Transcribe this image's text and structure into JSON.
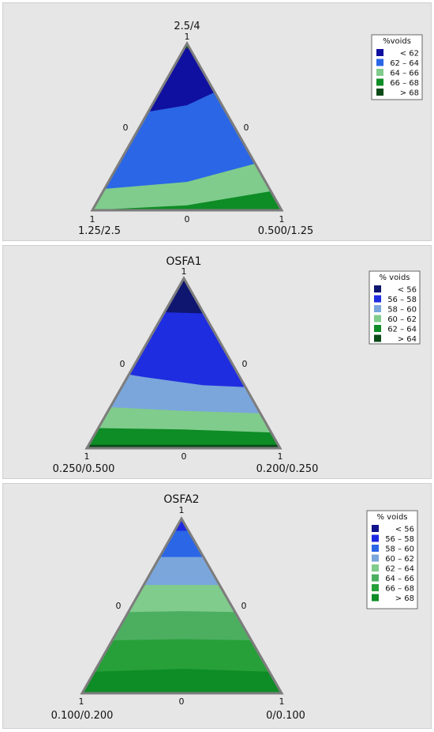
{
  "chart_data": [
    {
      "type": "heatmap",
      "subtype": "ternary contour",
      "corners": {
        "top": "2.5/4",
        "left": "1.25/2.5",
        "right": "0.500/1.25"
      },
      "ticks": {
        "top": "1",
        "left_edge_mid": "0",
        "right_edge_mid": "0",
        "bottom_left": "1",
        "bottom_mid": "0",
        "bottom_right": "1"
      },
      "legend": {
        "title": "%voids",
        "entries": [
          {
            "label": "<  62",
            "color": "#1010a0"
          },
          {
            "label": "62  –  64",
            "color": "#2a66e6"
          },
          {
            "label": "64  –  66",
            "color": "#80cc8c"
          },
          {
            "label": "66  –  68",
            "color": "#0e8c26"
          },
          {
            "label": ">  68",
            "color": "#0a4a18"
          }
        ]
      },
      "regions": [
        {
          "range": ">  68",
          "boundary": []
        },
        {
          "range": "66  –  68",
          "boundary": [
            [
              0.0,
              0.0
            ],
            [
              0.5,
              0.03
            ],
            [
              1.0,
              0.13
            ],
            [
              1.0,
              0.0
            ]
          ]
        },
        {
          "range": "64  –  66",
          "boundary": [
            [
              0.0,
              0.12
            ],
            [
              0.5,
              0.17
            ],
            [
              1.0,
              0.33
            ],
            [
              1.0,
              0.0
            ]
          ]
        },
        {
          "range": "62  –  64",
          "boundary": [
            [
              0.0,
              0.53
            ],
            [
              0.5,
              0.63
            ],
            [
              1.0,
              0.91
            ],
            [
              1.0,
              0.0
            ]
          ]
        },
        {
          "range": "<  62",
          "boundary": [
            [
              0.0,
              0.98
            ],
            [
              1.0,
              0.96
            ]
          ]
        }
      ]
    },
    {
      "type": "heatmap",
      "subtype": "ternary contour",
      "title": "OSFA1",
      "corners": {
        "top": "1",
        "left": "0.250/0.500",
        "right": "0.200/0.250"
      },
      "ticks": {
        "left_edge_mid": "0",
        "right_edge_mid": "0",
        "bottom_left": "1",
        "bottom_mid": "0",
        "bottom_right": "1"
      },
      "legend": {
        "title": "% voids",
        "entries": [
          {
            "label": "<  56",
            "color": "#0e1670"
          },
          {
            "label": "56  –  58",
            "color": "#1f2de0"
          },
          {
            "label": "58  –  60",
            "color": "#7aa6dc"
          },
          {
            "label": "60  –  62",
            "color": "#80cc8c"
          },
          {
            "label": "62  –  64",
            "color": "#0e8c26"
          },
          {
            "label": ">  64",
            "color": "#0a4a18"
          }
        ]
      },
      "regions": [
        {
          "range": ">  64",
          "boundary": [
            [
              0.0,
              0.02
            ],
            [
              1.0,
              0.02
            ],
            [
              1.0,
              0.0
            ]
          ]
        },
        {
          "range": "62  –  64",
          "boundary": [
            [
              0.0,
              0.12
            ],
            [
              0.5,
              0.11
            ],
            [
              1.0,
              0.09
            ],
            [
              1.0,
              0.0
            ]
          ]
        },
        {
          "range": "60  –  62",
          "boundary": [
            [
              0.0,
              0.25
            ],
            [
              0.5,
              0.22
            ],
            [
              1.0,
              0.2
            ],
            [
              1.0,
              0.0
            ]
          ]
        },
        {
          "range": "58  –  60",
          "boundary": [
            [
              0.0,
              0.48
            ],
            [
              0.3,
              0.42
            ],
            [
              0.6,
              0.37
            ],
            [
              1.0,
              0.35
            ],
            [
              1.0,
              0.0
            ]
          ]
        },
        {
          "range": "56  –  58",
          "boundary": [
            [
              0.0,
              0.86
            ],
            [
              0.4,
              0.8
            ],
            [
              1.0,
              0.78
            ],
            [
              1.0,
              0.0
            ]
          ]
        },
        {
          "range": "<  56",
          "boundary": []
        }
      ]
    },
    {
      "type": "heatmap",
      "subtype": "ternary contour",
      "title": "OSFA2",
      "corners": {
        "top": "1",
        "left": "0.100/0.200",
        "right": "0/0.100"
      },
      "ticks": {
        "left_edge_mid": "0",
        "right_edge_mid": "0",
        "bottom_left": "1",
        "bottom_mid": "0",
        "bottom_right": "1"
      },
      "legend": {
        "title": "% voids",
        "entries": [
          {
            "label": "<  56",
            "color": "#12128c"
          },
          {
            "label": "56  –  58",
            "color": "#1d28e0"
          },
          {
            "label": "58  –  60",
            "color": "#2a66e6"
          },
          {
            "label": "60  –  62",
            "color": "#7aa6dc"
          },
          {
            "label": "62  –  64",
            "color": "#80cc8c"
          },
          {
            "label": "64  –  66",
            "color": "#4caf60"
          },
          {
            "label": "66  –  68",
            "color": "#27a03a"
          },
          {
            "label": ">  68",
            "color": "#0e8c26"
          }
        ]
      },
      "regions": [
        {
          "range": ">  68",
          "boundary": [
            [
              0.0,
              0.12
            ],
            [
              0.5,
              0.14
            ],
            [
              1.0,
              0.12
            ],
            [
              1.0,
              0.0
            ]
          ]
        },
        {
          "range": "66  –  68",
          "boundary": [
            [
              0.0,
              0.3
            ],
            [
              0.5,
              0.31
            ],
            [
              1.0,
              0.3
            ],
            [
              1.0,
              0.0
            ]
          ]
        },
        {
          "range": "64  –  66",
          "boundary": [
            [
              0.0,
              0.46
            ],
            [
              0.5,
              0.47
            ],
            [
              1.0,
              0.46
            ],
            [
              1.0,
              0.0
            ]
          ]
        },
        {
          "range": "62  –  64",
          "boundary": [
            [
              0.0,
              0.62
            ],
            [
              1.0,
              0.62
            ],
            [
              1.0,
              0.0
            ]
          ]
        },
        {
          "range": "60  –  62",
          "boundary": [
            [
              0.0,
              0.78
            ],
            [
              1.0,
              0.78
            ],
            [
              1.0,
              0.0
            ]
          ]
        },
        {
          "range": "58  –  60",
          "boundary": [
            [
              0.0,
              0.93
            ],
            [
              1.0,
              0.93
            ],
            [
              1.0,
              0.0
            ]
          ]
        },
        {
          "range": "56  –  58",
          "boundary": []
        },
        {
          "range": "<  56",
          "boundary": []
        }
      ]
    }
  ]
}
